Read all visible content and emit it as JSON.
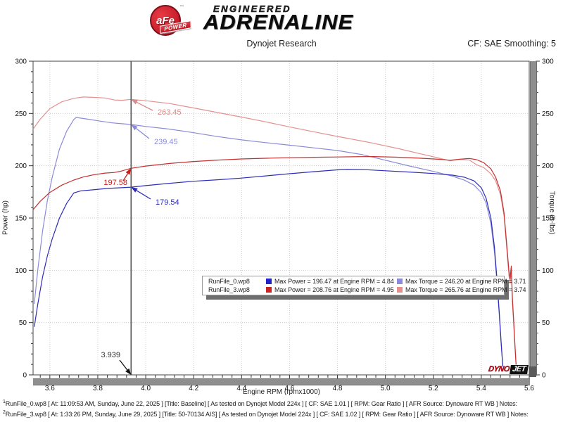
{
  "header": {
    "badge_text": "aFe",
    "badge_sub": "POWER",
    "badge_tm": "TM",
    "logo_top": "ENGINEERED",
    "logo_main": "ADRENALINE",
    "title": "Dynojet Research",
    "smoothing": "CF: SAE Smoothing: 5"
  },
  "branding": {
    "dyno": "DYNO",
    "jet": "JET"
  },
  "legend": {
    "runs": [
      {
        "name": "RunFile_0.wp8",
        "power_color": "#2222cc",
        "power_text": "Max Power = 196.47 at Engine RPM = 4.84",
        "torque_color": "#8a8ad8",
        "torque_text": "Max Torque = 246.20 at Engine RPM = 3.71"
      },
      {
        "name": "RunFile_3.wp8",
        "power_color": "#cc2222",
        "power_text": "Max Power = 208.76 at Engine RPM = 4.95",
        "torque_color": "#e59090",
        "torque_text": "Max Torque = 265.76 at Engine RPM = 3.74"
      }
    ]
  },
  "footer": {
    "lines": [
      {
        "marker": "1",
        "text": "RunFile_0.wp8 [ At: 11:09:53 AM, Sunday, June 22, 2025 ] [Title: Baseline]  [ As tested on Dynojet Model 224x ] [ CF: SAE 1.01 ] [ RPM: Gear Ratio ] [ AFR Source: Dynoware RT WB ] Notes:"
      },
      {
        "marker": "2",
        "text": "RunFile_3.wp8 [ At: 1:33:26 PM, Sunday, June 29, 2025 ] [Title: 50-70134 AIS]  [ As tested on Dynojet Model 224x ] [ CF: SAE 1.02 ] [ RPM: Gear Ratio ] [ AFR Source: Dynoware RT WB ] Notes:"
      }
    ]
  },
  "chart_data": {
    "type": "line",
    "title": "Dynojet Research",
    "xlabel": "Engine RPM (rpmx1000)",
    "ylabel_left": "Power (hp)",
    "ylabel_right": "Torque (ft-lbs)",
    "xlim": [
      3.53,
      5.6
    ],
    "ylim": [
      0,
      300
    ],
    "x_major_ticks": [
      3.6,
      3.8,
      4.0,
      4.2,
      4.4,
      4.6,
      4.8,
      5.0,
      5.2,
      5.4,
      5.6
    ],
    "x_minor_step": 0.04,
    "y_major_ticks": [
      0,
      50,
      100,
      150,
      200,
      250,
      300
    ],
    "y_minor_step": 10,
    "x_gridlines": [
      3.6,
      3.8,
      4.0,
      4.2,
      4.4,
      4.6,
      4.8,
      5.0,
      5.2,
      5.4
    ],
    "y_gridlines": [
      50,
      100,
      150,
      200,
      250
    ],
    "grid_style": "dotted",
    "legend_position": "center-bottom",
    "cursor": {
      "rpm": 3.939,
      "line_color": "#555555",
      "readouts": [
        {
          "series": "RunFile_3 Torque",
          "value": 263.45
        },
        {
          "series": "RunFile_0 Torque",
          "value": 239.45
        },
        {
          "series": "RunFile_3 Power",
          "value": 197.58
        },
        {
          "series": "RunFile_0 Power",
          "value": 179.54
        }
      ]
    },
    "markers": [
      {
        "text": "263.45",
        "color": "#d98c8c",
        "rpm": 3.939,
        "value": 263.45,
        "label": [
          224,
          163
        ],
        "anchor": "start",
        "tail": [
          217,
          157
        ]
      },
      {
        "text": "239.45",
        "color": "#8a8ad8",
        "rpm": 3.939,
        "value": 239.45,
        "label": [
          219,
          205
        ],
        "anchor": "start",
        "tail": [
          212,
          197
        ]
      },
      {
        "text": "197.58",
        "color": "#c42020",
        "rpm": 3.939,
        "value": 197.58,
        "label": [
          181,
          263
        ],
        "anchor": "end",
        "tail": [
          175,
          257
        ]
      },
      {
        "text": "179.54",
        "color": "#2d2db8",
        "rpm": 3.939,
        "value": 179.54,
        "label": [
          221,
          291
        ],
        "anchor": "start",
        "tail": [
          214,
          283
        ]
      },
      {
        "text": "3.939",
        "color": "#333333",
        "rpm": 3.939,
        "value": 0,
        "label": [
          171,
          508
        ],
        "anchor": "end",
        "tail": [
          170,
          512
        ],
        "arrow_color": "#111111"
      }
    ],
    "series": [
      {
        "name": "RunFile_0 Torque",
        "axis": "right",
        "color": "#8a8ad8",
        "points": [
          [
            3.535,
            68
          ],
          [
            3.55,
            101
          ],
          [
            3.57,
            138
          ],
          [
            3.59,
            167
          ],
          [
            3.61,
            189
          ],
          [
            3.64,
            216
          ],
          [
            3.67,
            233
          ],
          [
            3.7,
            244.3
          ],
          [
            3.71,
            246.2
          ],
          [
            3.76,
            244.5
          ],
          [
            3.8,
            243.0
          ],
          [
            3.86,
            241.0
          ],
          [
            3.9,
            240.2
          ],
          [
            3.939,
            239.45
          ],
          [
            4.0,
            237.6
          ],
          [
            4.1,
            235.0
          ],
          [
            4.2,
            231.6
          ],
          [
            4.3,
            227.9
          ],
          [
            4.4,
            224.7
          ],
          [
            4.5,
            222.1
          ],
          [
            4.6,
            219.7
          ],
          [
            4.7,
            217.1
          ],
          [
            4.8,
            214.6
          ],
          [
            4.9,
            210.8
          ],
          [
            5.0,
            205.3
          ],
          [
            5.1,
            199.8
          ],
          [
            5.2,
            194.6
          ],
          [
            5.28,
            190.0
          ],
          [
            5.33,
            186.2
          ],
          [
            5.37,
            181.4
          ],
          [
            5.4,
            174.2
          ],
          [
            5.42,
            164.2
          ],
          [
            5.44,
            144.9
          ],
          [
            5.455,
            117.4
          ],
          [
            5.465,
            89.3
          ],
          [
            5.475,
            57.6
          ],
          [
            5.483,
            28.7
          ],
          [
            5.49,
            7.7
          ]
        ]
      },
      {
        "name": "RunFile_3 Torque",
        "axis": "right",
        "color": "#e59090",
        "points": [
          [
            3.53,
            235
          ],
          [
            3.56,
            244.6
          ],
          [
            3.6,
            254.6
          ],
          [
            3.65,
            261.2
          ],
          [
            3.7,
            264.5
          ],
          [
            3.74,
            265.76
          ],
          [
            3.78,
            265.4
          ],
          [
            3.83,
            264.8
          ],
          [
            3.87,
            262.9
          ],
          [
            3.9,
            262.6
          ],
          [
            3.939,
            263.45
          ],
          [
            4.0,
            262.2
          ],
          [
            4.1,
            259.5
          ],
          [
            4.2,
            255.3
          ],
          [
            4.3,
            250.9
          ],
          [
            4.4,
            246.5
          ],
          [
            4.5,
            242.0
          ],
          [
            4.6,
            237.2
          ],
          [
            4.7,
            232.5
          ],
          [
            4.8,
            228.0
          ],
          [
            4.9,
            223.7
          ],
          [
            4.95,
            221.5
          ],
          [
            5.05,
            216.6
          ],
          [
            5.15,
            211.3
          ],
          [
            5.22,
            207.5
          ],
          [
            5.27,
            204.7
          ],
          [
            5.31,
            206.0
          ],
          [
            5.35,
            205.5
          ],
          [
            5.38,
            201.0
          ],
          [
            5.41,
            198.3
          ],
          [
            5.44,
            192.3
          ],
          [
            5.46,
            185.5
          ],
          [
            5.48,
            172.5
          ],
          [
            5.495,
            152.2
          ],
          [
            5.505,
            124.9
          ],
          [
            5.515,
            95.2
          ],
          [
            5.52,
            87.4
          ],
          [
            5.525,
            98.8
          ],
          [
            5.53,
            68.4
          ],
          [
            5.535,
            49.4
          ],
          [
            5.54,
            28.4
          ],
          [
            5.545,
            9.5
          ]
        ]
      },
      {
        "name": "RunFile_0 Power",
        "axis": "left",
        "color": "#2d2db8",
        "points": [
          [
            3.535,
            46
          ],
          [
            3.55,
            68
          ],
          [
            3.57,
            94
          ],
          [
            3.59,
            114
          ],
          [
            3.61,
            130
          ],
          [
            3.64,
            150
          ],
          [
            3.67,
            164
          ],
          [
            3.7,
            174
          ],
          [
            3.73,
            176
          ],
          [
            3.78,
            177
          ],
          [
            3.84,
            178.3
          ],
          [
            3.9,
            179
          ],
          [
            3.939,
            179.54
          ],
          [
            4.0,
            181
          ],
          [
            4.1,
            183.2
          ],
          [
            4.2,
            185.2
          ],
          [
            4.3,
            186.6
          ],
          [
            4.4,
            188.2
          ],
          [
            4.5,
            190.3
          ],
          [
            4.6,
            192.4
          ],
          [
            4.7,
            194.3
          ],
          [
            4.8,
            196.1
          ],
          [
            4.84,
            196.47
          ],
          [
            4.92,
            196.2
          ],
          [
            5.0,
            195.2
          ],
          [
            5.1,
            194.0
          ],
          [
            5.2,
            192.6
          ],
          [
            5.28,
            191.0
          ],
          [
            5.33,
            189.0
          ],
          [
            5.37,
            185.5
          ],
          [
            5.4,
            179.0
          ],
          [
            5.42,
            169.0
          ],
          [
            5.44,
            150.0
          ],
          [
            5.455,
            122.0
          ],
          [
            5.465,
            93.0
          ],
          [
            5.475,
            60.0
          ],
          [
            5.483,
            30.0
          ],
          [
            5.49,
            8.0
          ]
        ]
      },
      {
        "name": "RunFile_3 Power",
        "axis": "left",
        "color": "#c43030",
        "points": [
          [
            3.53,
            158
          ],
          [
            3.56,
            166
          ],
          [
            3.6,
            174.5
          ],
          [
            3.65,
            181.5
          ],
          [
            3.7,
            186.3
          ],
          [
            3.74,
            189.3
          ],
          [
            3.78,
            191.2
          ],
          [
            3.83,
            193.0
          ],
          [
            3.87,
            193.6
          ],
          [
            3.9,
            195.0
          ],
          [
            3.939,
            197.58
          ],
          [
            4.0,
            199.7
          ],
          [
            4.1,
            202.2
          ],
          [
            4.2,
            204.1
          ],
          [
            4.3,
            205.4
          ],
          [
            4.4,
            206.5
          ],
          [
            4.5,
            207.2
          ],
          [
            4.6,
            207.7
          ],
          [
            4.7,
            208.1
          ],
          [
            4.8,
            208.4
          ],
          [
            4.9,
            208.7
          ],
          [
            4.95,
            208.76
          ],
          [
            5.05,
            208.2
          ],
          [
            5.15,
            207.2
          ],
          [
            5.22,
            206.2
          ],
          [
            5.27,
            205.3
          ],
          [
            5.31,
            206.3
          ],
          [
            5.35,
            207.0
          ],
          [
            5.38,
            205.8
          ],
          [
            5.41,
            203.0
          ],
          [
            5.44,
            197.0
          ],
          [
            5.46,
            189.0
          ],
          [
            5.48,
            176.0
          ],
          [
            5.495,
            155.0
          ],
          [
            5.505,
            128.0
          ],
          [
            5.515,
            100.0
          ],
          [
            5.52,
            92.0
          ],
          [
            5.525,
            104.0
          ],
          [
            5.53,
            72.0
          ],
          [
            5.535,
            52.0
          ],
          [
            5.54,
            30.0
          ],
          [
            5.545,
            10.0
          ]
        ]
      }
    ]
  }
}
